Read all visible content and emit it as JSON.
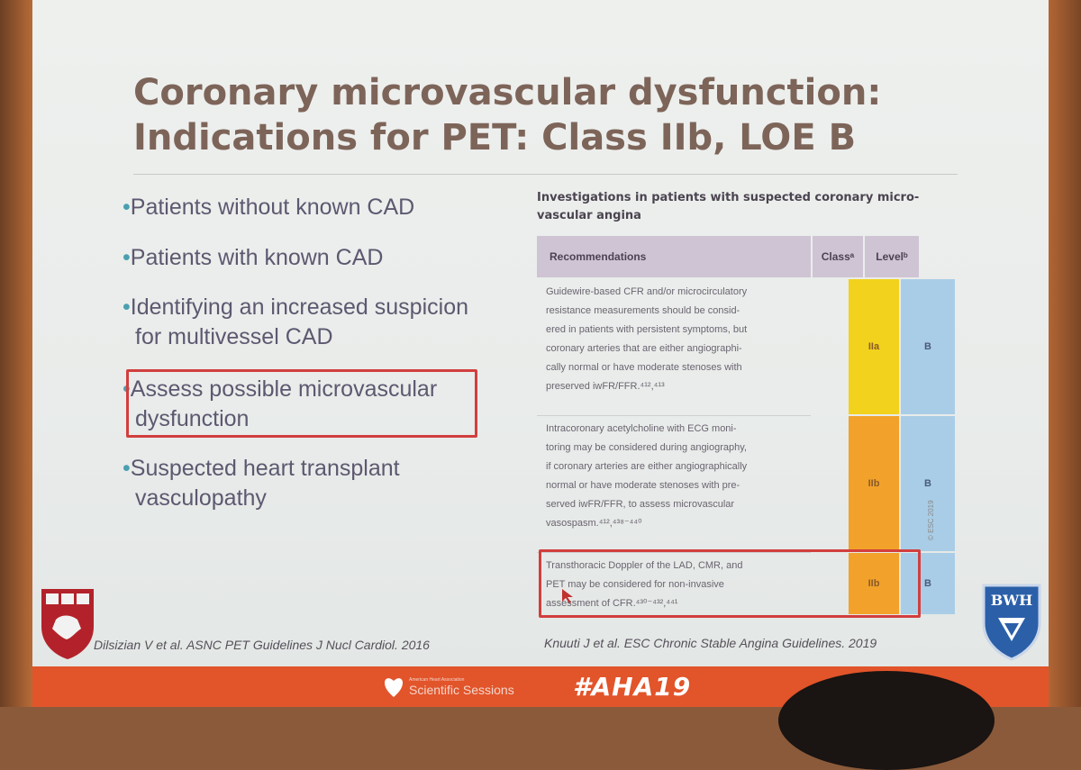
{
  "slide": {
    "title_line1": "Coronary microvascular dysfunction:",
    "title_line2": "Indications for PET: Class IIb, LOE B",
    "bullets": [
      {
        "lines": [
          "Patients without known CAD"
        ]
      },
      {
        "lines": [
          "Patients with known CAD"
        ]
      },
      {
        "lines": [
          "Identifying an increased suspicion",
          "for multivessel CAD"
        ]
      },
      {
        "lines": [
          "Assess possible microvascular",
          "dysfunction"
        ],
        "highlighted": true
      },
      {
        "lines": [
          "Suspected heart transplant",
          "vasculopathy"
        ]
      }
    ],
    "bullet_glyph": "•",
    "left_citation": "Dilsizian V et al. ASNC PET Guidelines J Nucl Cardiol. 2016",
    "right_citation": "Knuuti J et al. ESC Chronic Stable Angina Guidelines. 2019"
  },
  "table": {
    "title": "Investigations in patients with suspected coronary micro-vascular angina",
    "headers": {
      "recommendations": "Recommendations",
      "class": "Classᵃ",
      "level": "Levelᵇ"
    },
    "rows": [
      {
        "lines": [
          "Guidewire-based CFR and/or microcirculatory",
          "resistance measurements should be consid-",
          "ered in patients with persistent symptoms, but",
          "coronary arteries that are either angiographi-",
          "cally normal or have moderate stenoses with",
          "preserved iwFR/FFR.⁴¹²,⁴¹³"
        ],
        "class": "IIa",
        "level": "B"
      },
      {
        "lines": [
          "Intracoronary acetylcholine with ECG moni-",
          "toring may be considered during angiography,",
          "if coronary arteries are either angiographically",
          "normal or have moderate stenoses with pre-",
          "served iwFR/FFR, to assess microvascular",
          "vasospasm.⁴¹²,⁴³⁸⁻⁴⁴⁰"
        ],
        "class": "IIb",
        "level": "B"
      },
      {
        "lines": [
          "Transthoracic Doppler of the LAD, CMR, and",
          "PET may be considered for non-invasive",
          "assessment of CFR.⁴³⁰⁻⁴³²,⁴⁴¹"
        ],
        "class": "IIb",
        "level": "B",
        "highlighted": true
      }
    ],
    "side_note": "© ESC 2019"
  },
  "logos": {
    "right_logo_text": "BWH"
  },
  "footer": {
    "brand_small": "American Heart Association",
    "brand": "Scientific Sessions",
    "hashtag": "#AHA19"
  },
  "colors": {
    "title": "#7d6459",
    "bullet_text": "#5d5870",
    "highlight_border": "#d23e3e",
    "class_iia": "#f2d21c",
    "class_iib": "#f2a22a",
    "level_cell": "#a9cde6",
    "footer": "#e2542a"
  }
}
